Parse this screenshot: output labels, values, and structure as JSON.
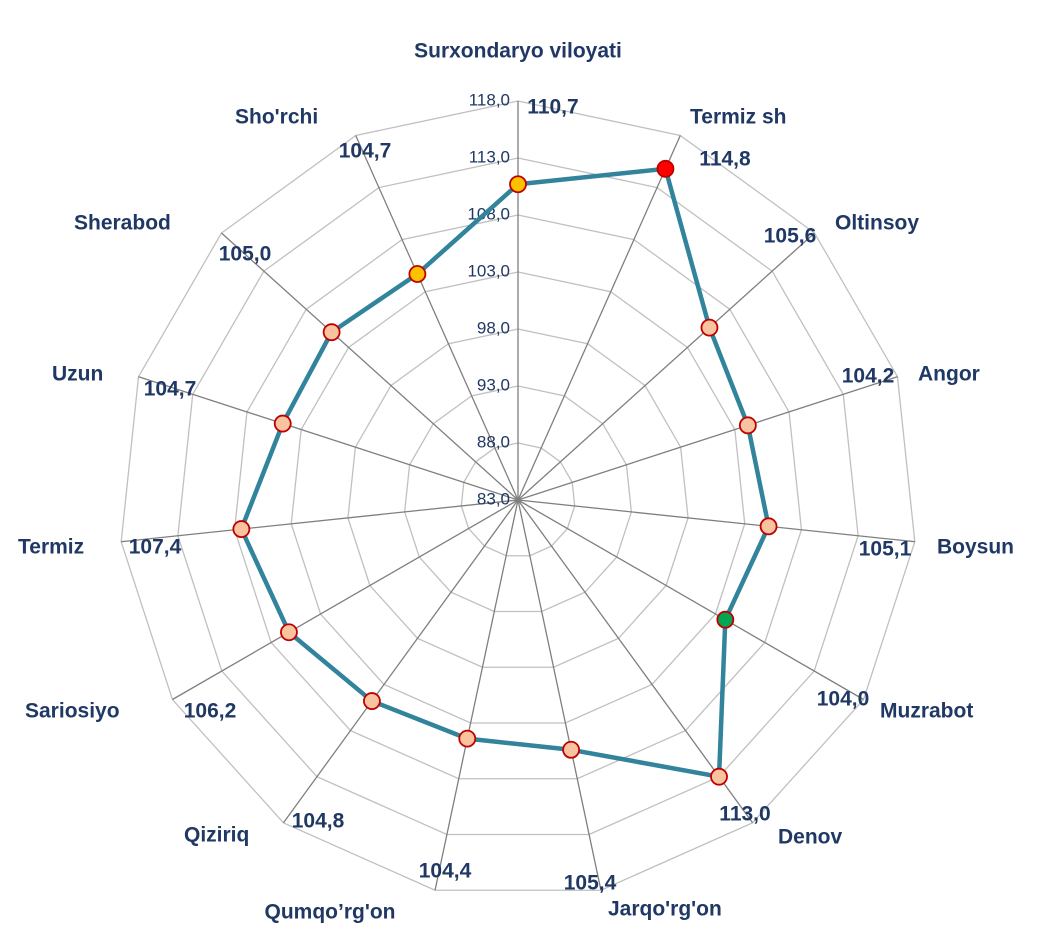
{
  "chart_data": {
    "type": "radar",
    "categories": [
      "Surxondaryo viloyati",
      "Termiz sh",
      "Oltinsoy",
      "Angor",
      "Boysun",
      "Muzrabot",
      "Denov",
      "Jarqo'rg'on",
      "Qumqo’rg'on",
      "Qiziriq",
      "Sariosiyo",
      "Termiz",
      "Uzun",
      "Sherabod",
      "Sho'rchi"
    ],
    "values": [
      110.7,
      114.8,
      105.6,
      104.2,
      105.1,
      104.0,
      113.0,
      105.4,
      104.4,
      104.8,
      106.2,
      107.4,
      104.7,
      105.0,
      104.7
    ],
    "value_labels": [
      "110,7",
      "114,8",
      "105,6",
      "104,2",
      "105,1",
      "104,0",
      "113,0",
      "105,4",
      "104,4",
      "104,8",
      "106,2",
      "107,4",
      "104,7",
      "105,0",
      "104,7"
    ],
    "color": "#31849b",
    "point_colors": [
      "#ffc000",
      "#ff0000",
      "#f9c3a0",
      "#f9c3a0",
      "#f9c3a0",
      "#00a651",
      "#f9c3a0",
      "#f9c3a0",
      "#f9c3a0",
      "#f9c3a0",
      "#f9c3a0",
      "#f9c3a0",
      "#f9c3a0",
      "#f9c3a0",
      "#ffc000"
    ],
    "ylim": [
      83,
      118
    ],
    "yticks": [
      {
        "value": 83,
        "label": "83,0"
      },
      {
        "value": 88,
        "label": "88,0"
      },
      {
        "value": 93,
        "label": "93,0"
      },
      {
        "value": 98,
        "label": "98,0"
      },
      {
        "value": 103,
        "label": "103,0"
      },
      {
        "value": 108,
        "label": "108,0"
      },
      {
        "value": 113,
        "label": "113,0"
      },
      {
        "value": 118,
        "label": "118,0"
      }
    ],
    "grid": true
  }
}
